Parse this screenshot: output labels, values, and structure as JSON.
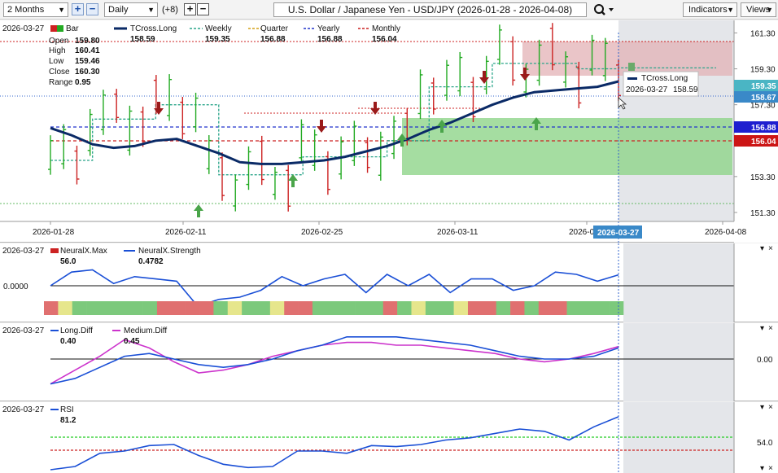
{
  "toolbar": {
    "range": "2 Months",
    "interval": "Daily",
    "offset": "(+8)",
    "title": "U.S. Dollar / Japanese Yen - USD/JPY (2026-01-28 - 2026-04-08)",
    "indicators": "Indicators",
    "views": "Views"
  },
  "main": {
    "date": "2026-03-27",
    "legend": {
      "bar": "Bar",
      "tcross": "TCross.Long",
      "tcross_val": "158.59",
      "weekly": "Weekly",
      "weekly_val": "159.35",
      "quarter": "Quarter",
      "quarter_val": "156.88",
      "yearly": "Yearly",
      "yearly_val": "156.88",
      "monthly": "Monthly",
      "monthly_val": "156.04"
    },
    "ohlc": {
      "open_label": "Open",
      "open": "159.80",
      "high_label": "High",
      "high": "160.41",
      "low_label": "Low",
      "low": "159.46",
      "close_label": "Close",
      "close": "160.30",
      "range_label": "Range",
      "range": "0.95"
    },
    "tooltip": {
      "title": "TCross.Long",
      "date": "2026-03-27",
      "value": "158.59"
    },
    "price_labels": {
      "weekly": "159.35",
      "tcross": "158.67",
      "yearly": "156.88",
      "monthly": "156.04"
    },
    "yticks": [
      "161.30",
      "159.30",
      "157.30",
      "155.30",
      "153.30",
      "151.30"
    ],
    "xticks": [
      "2026-01-28",
      "2026-02-11",
      "2026-02-25",
      "2026-03-11",
      "2026-0",
      "2026-04-08"
    ],
    "cursor_date": "2026-03-27"
  },
  "neuralx": {
    "date": "2026-03-27",
    "max_label": "NeuralX.Max",
    "max_val": "56.0",
    "strength_label": "NeuralX.Strength",
    "strength_val": "0.4782",
    "left_val": "0.0000"
  },
  "diff": {
    "date": "2026-03-27",
    "long_label": "Long.Diff",
    "long_val": "0.40",
    "medium_label": "Medium.Diff",
    "medium_val": "0.45",
    "right_val": "0.00"
  },
  "rsi": {
    "date": "2026-03-27",
    "label": "RSI",
    "val": "81.2",
    "right_val": "54.0"
  },
  "colors": {
    "tcross": "#0a2a66",
    "weekly": "#2aa58a",
    "yearly": "#2233cc",
    "monthly": "#cc2222",
    "up_bar": "#22aa22",
    "down_bar": "#cc2222",
    "strength": "#1a4fd6",
    "medium": "#cc33cc"
  },
  "chart_data": [
    {
      "type": "line",
      "title": "U.S. Dollar / Japanese Yen - USD/JPY (2026-01-28 - 2026-04-08)",
      "series": [
        {
          "name": "TCross.Long",
          "values": [
            156.0,
            155.6,
            155.1,
            154.9,
            155.0,
            155.3,
            155.4,
            155.0,
            154.6,
            154.1,
            154.0,
            154.0,
            154.1,
            154.2,
            154.4,
            154.7,
            155.0,
            155.4,
            155.9,
            156.3,
            156.8,
            157.3,
            157.7,
            158.0,
            158.1,
            158.2,
            158.3,
            158.6
          ]
        },
        {
          "name": "Weekly",
          "values": [
            154.2,
            154.2,
            156.5,
            156.5,
            156.5,
            157.3,
            157.3,
            157.3,
            153.4,
            153.4,
            153.4,
            153.4,
            154.4,
            154.4,
            154.4,
            154.4,
            155.3,
            155.3,
            158.3,
            158.3,
            158.3,
            159.6,
            159.6,
            159.6,
            159.6,
            159.3,
            159.3,
            159.35
          ]
        },
        {
          "name": "Quarter",
          "values": [
            156.88
          ]
        },
        {
          "name": "Yearly",
          "values": [
            156.88
          ]
        },
        {
          "name": "Monthly",
          "values": [
            156.04
          ]
        }
      ],
      "ylim": [
        150.8,
        162.0
      ]
    },
    {
      "type": "line",
      "series": [
        {
          "name": "NeuralX.Strength",
          "values": [
            0.0,
            0.6,
            0.7,
            0.1,
            0.4,
            0.3,
            0.2,
            -0.9,
            -0.6,
            -0.5,
            -0.2,
            0.4,
            0.0,
            0.3,
            0.5,
            -0.3,
            0.5,
            0.0,
            0.5,
            -0.3,
            0.3,
            0.3,
            -0.2,
            0.0,
            0.6,
            0.5,
            0.2,
            0.48
          ]
        }
      ]
    },
    {
      "type": "line",
      "series": [
        {
          "name": "Long.Diff",
          "values": [
            -0.9,
            -0.7,
            -0.3,
            0.1,
            0.2,
            0.0,
            -0.2,
            -0.3,
            -0.2,
            0.0,
            0.3,
            0.5,
            0.8,
            0.8,
            0.8,
            0.7,
            0.6,
            0.5,
            0.3,
            0.1,
            0.0,
            0.0,
            0.1,
            0.4
          ]
        },
        {
          "name": "Medium.Diff",
          "values": [
            -0.9,
            -0.4,
            0.1,
            0.7,
            0.4,
            -0.1,
            -0.5,
            -0.4,
            -0.2,
            0.1,
            0.3,
            0.5,
            0.6,
            0.6,
            0.5,
            0.5,
            0.4,
            0.3,
            0.2,
            0.0,
            -0.1,
            0.0,
            0.2,
            0.45
          ]
        }
      ]
    },
    {
      "type": "line",
      "series": [
        {
          "name": "RSI",
          "values": [
            33,
            36,
            48,
            50,
            55,
            56,
            46,
            38,
            35,
            36,
            50,
            50,
            48,
            55,
            54,
            56,
            60,
            62,
            66,
            70,
            68,
            60,
            72,
            81.2
          ]
        }
      ]
    }
  ]
}
